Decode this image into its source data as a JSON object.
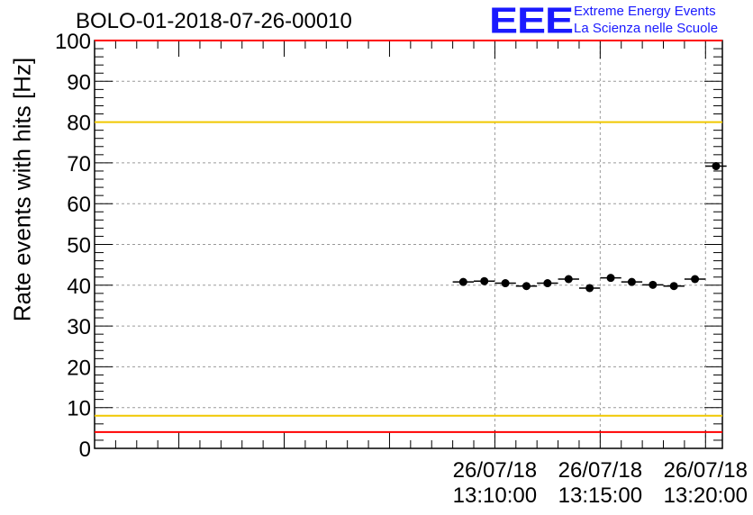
{
  "title": "BOLO-01-2018-07-26-00010",
  "logo": {
    "text": "EEE",
    "line1": "Extreme Energy Events",
    "line2": "La Scienza nelle Scuole",
    "color": "#1a1aff"
  },
  "chart_data": {
    "type": "scatter",
    "ylabel": "Rate events with hits [Hz]",
    "ylim": [
      0,
      100
    ],
    "y_ticks": [
      0,
      10,
      20,
      30,
      40,
      50,
      60,
      70,
      80,
      90,
      100
    ],
    "x_range_minutes": [
      -9,
      20.8
    ],
    "x_ticks": [
      {
        "minute": 10,
        "date": "26/07/18",
        "time": "13:10:00"
      },
      {
        "minute": 15,
        "date": "26/07/18",
        "time": "13:15:00"
      },
      {
        "minute": 20,
        "date": "26/07/18",
        "time": "13:20:00"
      }
    ],
    "grid": true,
    "points": [
      {
        "x": 8.5,
        "y": 40.8
      },
      {
        "x": 9.5,
        "y": 41.0
      },
      {
        "x": 10.5,
        "y": 40.5
      },
      {
        "x": 11.5,
        "y": 39.8
      },
      {
        "x": 12.5,
        "y": 40.5
      },
      {
        "x": 13.5,
        "y": 41.5
      },
      {
        "x": 14.5,
        "y": 39.3
      },
      {
        "x": 15.5,
        "y": 41.8
      },
      {
        "x": 16.5,
        "y": 40.8
      },
      {
        "x": 17.5,
        "y": 40.1
      },
      {
        "x": 18.5,
        "y": 39.8
      },
      {
        "x": 19.5,
        "y": 41.5
      },
      {
        "x": 20.5,
        "y": 69.2
      }
    ],
    "bin_width_minutes": 1,
    "reference_lines": [
      {
        "y": 100,
        "color": "#ff0000"
      },
      {
        "y": 80,
        "color": "#f0c800"
      },
      {
        "y": 8,
        "color": "#f0c800"
      },
      {
        "y": 4,
        "color": "#ff0000"
      }
    ]
  }
}
